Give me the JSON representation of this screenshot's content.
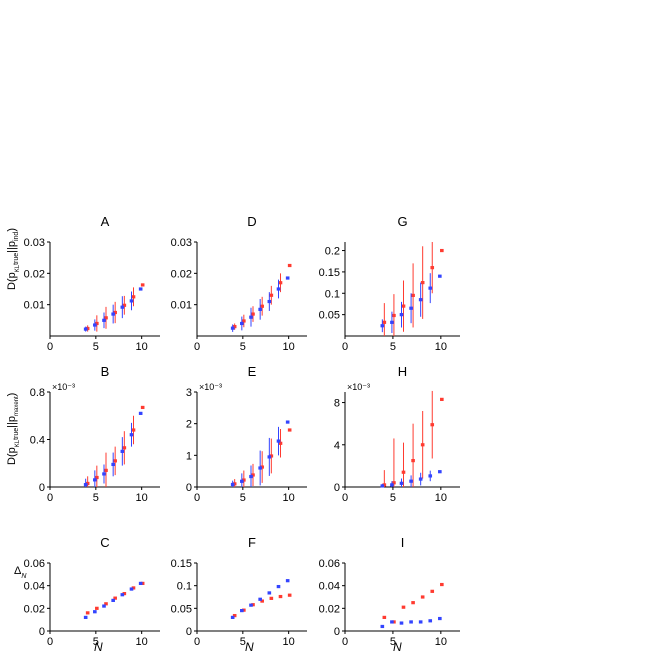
{
  "colors": {
    "red": "#ff3b30",
    "blue": "#3344ff"
  },
  "labels": {
    "row1_y": "D(p_true || p_ind)",
    "row1_y_main": "D(p",
    "row1_y_sub1": "KL",
    "row1_y_sub2": "true",
    "row1_y_sep": "||p",
    "row1_y_sub3": "ind",
    "row1_y_close": ")",
    "row2_y_main": "D(p",
    "row2_y_sub1": "KL",
    "row2_y_sub2": "true",
    "row2_y_sep": "||p",
    "row2_y_sub3": "maxent",
    "row2_y_close": ")",
    "row3_y": "Δ",
    "row3_y_sub": "N",
    "x_label": "N"
  },
  "chart_data": [
    {
      "id": "A",
      "title": "A",
      "type": "scatter",
      "xlim": [
        0,
        12
      ],
      "ylim": [
        0,
        0.03
      ],
      "xticks": [
        "0",
        "5",
        "10"
      ],
      "yticks": [
        "0.01",
        "0.02",
        "0.03"
      ],
      "multiplier": "",
      "x": [
        4,
        5,
        6,
        7,
        8,
        9,
        10
      ],
      "series": [
        {
          "name": "red",
          "values": [
            0.0024,
            0.004,
            0.0058,
            0.0075,
            0.0098,
            0.0125,
            0.0163
          ],
          "err": [
            0.001,
            0.0026,
            0.0035,
            0.0034,
            0.003,
            0.003,
            0
          ]
        },
        {
          "name": "blue",
          "values": [
            0.0022,
            0.0035,
            0.005,
            0.007,
            0.0092,
            0.0112,
            0.015
          ],
          "err": [
            0.0008,
            0.0018,
            0.0025,
            0.003,
            0.0035,
            0.003,
            0
          ]
        }
      ]
    },
    {
      "id": "D",
      "title": "D",
      "type": "scatter",
      "xlim": [
        0,
        12
      ],
      "ylim": [
        0,
        0.03
      ],
      "xticks": [
        "0",
        "5",
        "10"
      ],
      "yticks": [
        "0.01",
        "0.02",
        "0.03"
      ],
      "multiplier": "",
      "x": [
        4,
        5,
        6,
        7,
        8,
        9,
        10
      ],
      "series": [
        {
          "name": "red",
          "values": [
            0.003,
            0.0048,
            0.007,
            0.0095,
            0.013,
            0.017,
            0.0225
          ],
          "err": [
            0.001,
            0.002,
            0.0025,
            0.003,
            0.003,
            0.003,
            0
          ]
        },
        {
          "name": "blue",
          "values": [
            0.0025,
            0.004,
            0.006,
            0.0085,
            0.011,
            0.015,
            0.0185
          ],
          "err": [
            0.0012,
            0.0022,
            0.003,
            0.0033,
            0.003,
            0.003,
            0
          ]
        }
      ]
    },
    {
      "id": "G",
      "title": "G",
      "type": "scatter",
      "xlim": [
        0,
        12
      ],
      "ylim": [
        0,
        0.22
      ],
      "xticks": [
        "0",
        "5",
        "10"
      ],
      "yticks": [
        "0.05",
        "0.1",
        "0.15",
        "0.2"
      ],
      "multiplier": "",
      "x": [
        4,
        5,
        6,
        7,
        8,
        9,
        10
      ],
      "series": [
        {
          "name": "red",
          "values": [
            0.032,
            0.048,
            0.07,
            0.095,
            0.125,
            0.16,
            0.2
          ],
          "err": [
            0.045,
            0.05,
            0.06,
            0.075,
            0.085,
            0.06,
            0
          ]
        },
        {
          "name": "blue",
          "values": [
            0.024,
            0.032,
            0.05,
            0.065,
            0.085,
            0.112,
            0.14
          ],
          "err": [
            0.015,
            0.025,
            0.03,
            0.035,
            0.04,
            0.035,
            0
          ]
        }
      ]
    },
    {
      "id": "B",
      "title": "B",
      "type": "scatter",
      "xlim": [
        0,
        12
      ],
      "ylim": [
        0,
        0.8
      ],
      "xticks": [
        "0",
        "5",
        "10"
      ],
      "yticks": [
        "0",
        "0.4",
        "0.8"
      ],
      "multiplier": "×10⁻³",
      "x": [
        4,
        5,
        6,
        7,
        8,
        9,
        10
      ],
      "series": [
        {
          "name": "red",
          "values": [
            0.03,
            0.08,
            0.14,
            0.22,
            0.33,
            0.48,
            0.67
          ],
          "err": [
            0.06,
            0.1,
            0.15,
            0.12,
            0.14,
            0.12,
            0
          ]
        },
        {
          "name": "blue",
          "values": [
            0.02,
            0.06,
            0.11,
            0.19,
            0.3,
            0.44,
            0.62
          ],
          "err": [
            0.05,
            0.08,
            0.08,
            0.1,
            0.12,
            0.1,
            0
          ]
        }
      ]
    },
    {
      "id": "E",
      "title": "E",
      "type": "scatter",
      "xlim": [
        0,
        12
      ],
      "ylim": [
        0,
        3
      ],
      "xticks": [
        "0",
        "5",
        "10"
      ],
      "yticks": [
        "0",
        "1",
        "2",
        "3"
      ],
      "multiplier": "×10⁻³",
      "x": [
        4,
        5,
        6,
        7,
        8,
        9,
        10
      ],
      "series": [
        {
          "name": "red",
          "values": [
            0.1,
            0.22,
            0.38,
            0.63,
            0.98,
            1.38,
            1.8
          ],
          "err": [
            0.15,
            0.3,
            0.35,
            0.5,
            0.55,
            0.45,
            0
          ]
        },
        {
          "name": "blue",
          "values": [
            0.08,
            0.18,
            0.33,
            0.6,
            0.95,
            1.45,
            2.05
          ],
          "err": [
            0.12,
            0.25,
            0.35,
            0.55,
            0.6,
            0.45,
            0
          ]
        }
      ]
    },
    {
      "id": "H",
      "title": "H",
      "type": "scatter",
      "xlim": [
        0,
        12
      ],
      "ylim": [
        0,
        9
      ],
      "xticks": [
        "0",
        "5",
        "10"
      ],
      "yticks": [
        "0",
        "4",
        "8"
      ],
      "multiplier": "×10⁻³",
      "x": [
        4,
        5,
        6,
        7,
        8,
        9,
        10
      ],
      "series": [
        {
          "name": "red",
          "values": [
            0.2,
            0.4,
            1.4,
            2.5,
            4.0,
            5.9,
            8.3
          ],
          "err": [
            1.4,
            4.2,
            2.8,
            3.5,
            3.2,
            3.2,
            0
          ]
        },
        {
          "name": "blue",
          "values": [
            0.1,
            0.2,
            0.35,
            0.55,
            0.75,
            1.05,
            1.45
          ],
          "err": [
            0.2,
            0.35,
            0.45,
            0.55,
            0.6,
            0.5,
            0
          ]
        }
      ]
    },
    {
      "id": "C",
      "title": "C",
      "type": "scatter",
      "xlim": [
        0,
        12
      ],
      "ylim": [
        0,
        0.06
      ],
      "xticks": [
        "0",
        "5",
        "10"
      ],
      "yticks": [
        "0",
        "0.02",
        "0.04",
        "0.06"
      ],
      "multiplier": "",
      "x": [
        4,
        5,
        6,
        7,
        8,
        9,
        10
      ],
      "series": [
        {
          "name": "red",
          "values": [
            0.016,
            0.02,
            0.024,
            0.029,
            0.033,
            0.038,
            0.042
          ],
          "err": []
        },
        {
          "name": "blue",
          "values": [
            0.012,
            0.017,
            0.022,
            0.027,
            0.032,
            0.037,
            0.042
          ],
          "err": []
        }
      ]
    },
    {
      "id": "F",
      "title": "F",
      "type": "scatter",
      "xlim": [
        0,
        12
      ],
      "ylim": [
        0,
        0.15
      ],
      "xticks": [
        "0",
        "5",
        "10"
      ],
      "yticks": [
        "0",
        "0.05",
        "0.1",
        "0.15"
      ],
      "multiplier": "",
      "x": [
        4,
        5,
        6,
        7,
        8,
        9,
        10
      ],
      "series": [
        {
          "name": "red",
          "values": [
            0.034,
            0.046,
            0.058,
            0.066,
            0.072,
            0.076,
            0.079
          ],
          "err": []
        },
        {
          "name": "blue",
          "values": [
            0.03,
            0.045,
            0.057,
            0.07,
            0.084,
            0.098,
            0.111
          ],
          "err": []
        }
      ]
    },
    {
      "id": "I",
      "title": "I",
      "type": "scatter",
      "xlim": [
        0,
        12
      ],
      "ylim": [
        0,
        0.06
      ],
      "xticks": [
        "0",
        "5",
        "10"
      ],
      "yticks": [
        "0",
        "0.02",
        "0.04",
        "0.06"
      ],
      "multiplier": "",
      "x": [
        4,
        5,
        6,
        7,
        8,
        9,
        10
      ],
      "series": [
        {
          "name": "red",
          "values": [
            0.012,
            0.008,
            0.021,
            0.025,
            0.03,
            0.035,
            0.041
          ],
          "err": []
        },
        {
          "name": "blue",
          "values": [
            0.004,
            0.008,
            0.007,
            0.008,
            0.008,
            0.009,
            0.011
          ],
          "err": []
        }
      ]
    }
  ]
}
